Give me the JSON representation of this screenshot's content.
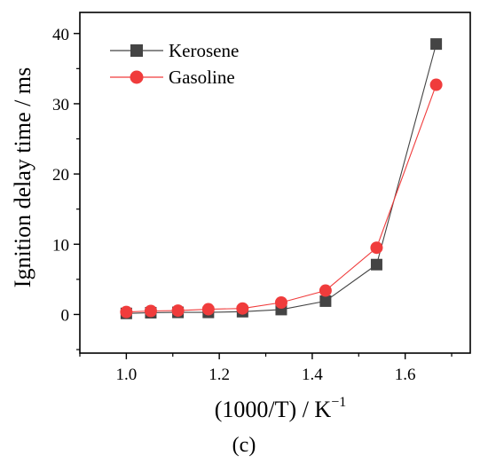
{
  "chart_data": {
    "type": "line",
    "xlabel": "(1000/T) / K",
    "xlabel_sup": "−1",
    "ylabel": "Ignition delay time / ms",
    "panel_label": "(c)",
    "xlim": [
      0.9,
      1.74
    ],
    "ylim": [
      -5.5,
      43
    ],
    "x_ticks": [
      1.0,
      1.2,
      1.4,
      1.6
    ],
    "x_tick_labels": [
      "1.0",
      "1.2",
      "1.4",
      "1.6"
    ],
    "y_ticks": [
      0,
      10,
      20,
      30,
      40
    ],
    "y_tick_labels": [
      "0",
      "10",
      "20",
      "30",
      "40"
    ],
    "x": [
      1.0,
      1.0526,
      1.1111,
      1.1765,
      1.25,
      1.3333,
      1.4286,
      1.5385,
      1.6667
    ],
    "series": [
      {
        "name": "Kerosene",
        "marker": "square",
        "color": "#444444",
        "line_color": "#444444",
        "values": [
          0.15,
          0.25,
          0.3,
          0.3,
          0.4,
          0.7,
          1.9,
          7.1,
          38.5
        ]
      },
      {
        "name": "Gasoline",
        "marker": "circle",
        "color": "#f03c3c",
        "line_color": "#f03c3c",
        "values": [
          0.35,
          0.5,
          0.55,
          0.75,
          0.85,
          1.7,
          3.4,
          9.5,
          32.7
        ]
      }
    ],
    "legend_position": "top-left",
    "grid": false
  }
}
